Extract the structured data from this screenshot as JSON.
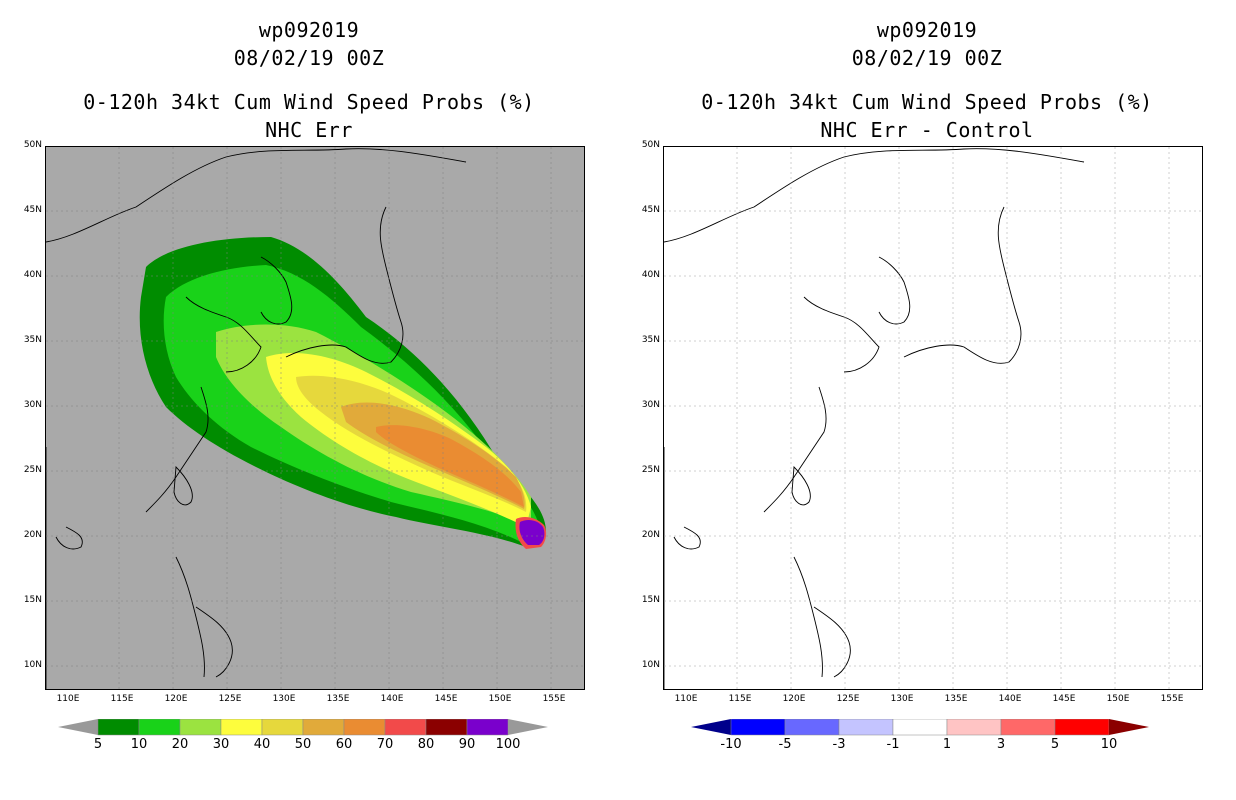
{
  "left_panel": {
    "title_line1": "wp092019",
    "title_line2": "08/02/19 00Z",
    "title_line3": "0-120h 34kt Cum Wind Speed Probs (%)",
    "title_line4": "NHC Err",
    "background_color": "#a9a9a9",
    "colorbar": {
      "labels": [
        "5",
        "10",
        "20",
        "30",
        "40",
        "50",
        "60",
        "70",
        "80",
        "90",
        "100"
      ],
      "colors": [
        "#008c00",
        "#19d219",
        "#9be340",
        "#fdfd3d",
        "#e6d83c",
        "#e1aa3a",
        "#ea8c32",
        "#f24a4a",
        "#8b0000",
        "#7a00cc"
      ]
    }
  },
  "right_panel": {
    "title_line1": "wp092019",
    "title_line2": "08/02/19 00Z",
    "title_line3": "0-120h 34kt Cum Wind Speed Probs (%)",
    "title_line4": "NHC Err - Control",
    "background_color": "#ffffff",
    "colorbar": {
      "labels": [
        "-10",
        "-5",
        "-3",
        "-1",
        "1",
        "3",
        "5",
        "10"
      ],
      "colors": [
        "#00008b",
        "#0000ff",
        "#6868ff",
        "#c4c4ff",
        "#ffffff",
        "#ffc4c4",
        "#ff6868",
        "#ff0000",
        "#8b0000"
      ]
    }
  },
  "axes": {
    "lat_labels": [
      "50N",
      "45N",
      "40N",
      "35N",
      "30N",
      "25N",
      "20N",
      "15N",
      "10N"
    ],
    "lon_labels": [
      "110E",
      "115E",
      "120E",
      "125E",
      "130E",
      "135E",
      "140E",
      "145E",
      "150E",
      "155E"
    ]
  }
}
